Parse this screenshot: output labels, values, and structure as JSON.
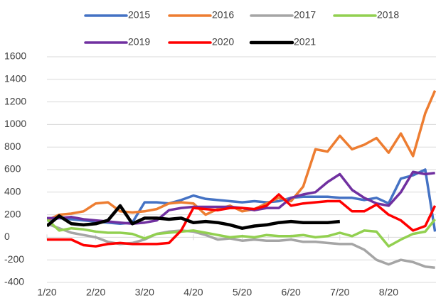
{
  "chart_data": {
    "type": "line",
    "x": [
      0,
      0.25,
      0.5,
      0.75,
      1,
      1.25,
      1.5,
      1.75,
      2,
      2.25,
      2.5,
      2.75,
      3,
      3.25,
      3.5,
      3.75,
      4,
      4.25,
      4.5,
      4.75,
      5,
      5.25,
      5.5,
      5.75,
      6,
      6.25,
      6.5,
      6.75,
      7,
      7.25,
      7.5,
      7.75,
      7.95
    ],
    "xlim": [
      0,
      7.97
    ],
    "xticks": [
      {
        "value": 0,
        "label": "1/20"
      },
      {
        "value": 1,
        "label": "2/20"
      },
      {
        "value": 2,
        "label": "3/20"
      },
      {
        "value": 3,
        "label": "4/20"
      },
      {
        "value": 4,
        "label": "5/20"
      },
      {
        "value": 5,
        "label": "6/20"
      },
      {
        "value": 6,
        "label": "7/20"
      },
      {
        "value": 7,
        "label": "8/20"
      }
    ],
    "ylim": [
      -400,
      1600
    ],
    "yticks": [
      -400,
      -200,
      0,
      200,
      400,
      600,
      800,
      1000,
      1200,
      1400,
      1600
    ],
    "grid": true,
    "series": [
      {
        "name": "2015",
        "color": "#4472c4",
        "values": [
          150,
          170,
          160,
          150,
          140,
          130,
          120,
          130,
          310,
          310,
          300,
          330,
          370,
          340,
          330,
          320,
          310,
          320,
          310,
          320,
          350,
          360,
          360,
          360,
          350,
          350,
          330,
          350,
          300,
          520,
          550,
          600,
          50
        ]
      },
      {
        "name": "2016",
        "color": "#ed7d31",
        "values": [
          150,
          200,
          210,
          230,
          300,
          310,
          230,
          220,
          230,
          250,
          300,
          310,
          300,
          200,
          250,
          280,
          230,
          250,
          300,
          350,
          320,
          450,
          780,
          760,
          900,
          780,
          820,
          880,
          750,
          920,
          720,
          1100,
          1300
        ]
      },
      {
        "name": "2017",
        "color": "#a5a5a5",
        "values": [
          120,
          80,
          40,
          20,
          0,
          -40,
          -60,
          -50,
          -20,
          30,
          50,
          60,
          50,
          20,
          -20,
          -10,
          -30,
          -20,
          -30,
          -30,
          -20,
          -40,
          -40,
          -50,
          -60,
          -60,
          -110,
          -200,
          -240,
          -200,
          -220,
          -260,
          -270
        ]
      },
      {
        "name": "2018",
        "color": "#92d050",
        "values": [
          160,
          60,
          80,
          70,
          50,
          40,
          40,
          30,
          -10,
          30,
          40,
          50,
          60,
          40,
          20,
          0,
          10,
          0,
          20,
          10,
          10,
          20,
          0,
          10,
          40,
          10,
          60,
          50,
          -80,
          -20,
          30,
          50,
          160
        ]
      },
      {
        "name": "2019",
        "color": "#7030a0",
        "values": [
          170,
          170,
          180,
          160,
          150,
          140,
          130,
          120,
          130,
          150,
          240,
          260,
          270,
          270,
          270,
          270,
          260,
          240,
          260,
          260,
          350,
          380,
          400,
          490,
          560,
          420,
          350,
          300,
          280,
          400,
          580,
          560,
          570
        ]
      },
      {
        "name": "2020",
        "color": "#ff0000",
        "values": [
          -20,
          -20,
          -20,
          -70,
          -80,
          -60,
          -50,
          -60,
          -60,
          -60,
          -50,
          60,
          260,
          250,
          240,
          260,
          260,
          250,
          280,
          380,
          280,
          300,
          310,
          320,
          320,
          230,
          230,
          290,
          200,
          150,
          60,
          100,
          280
        ]
      },
      {
        "name": "2021",
        "color": "#000000",
        "values": [
          100,
          190,
          120,
          110,
          120,
          150,
          280,
          120,
          170,
          170,
          160,
          170,
          130,
          140,
          130,
          110,
          80,
          100,
          110,
          130,
          140,
          130,
          130,
          130,
          140,
          null,
          null,
          null,
          null,
          null,
          null,
          null,
          null
        ]
      }
    ]
  }
}
